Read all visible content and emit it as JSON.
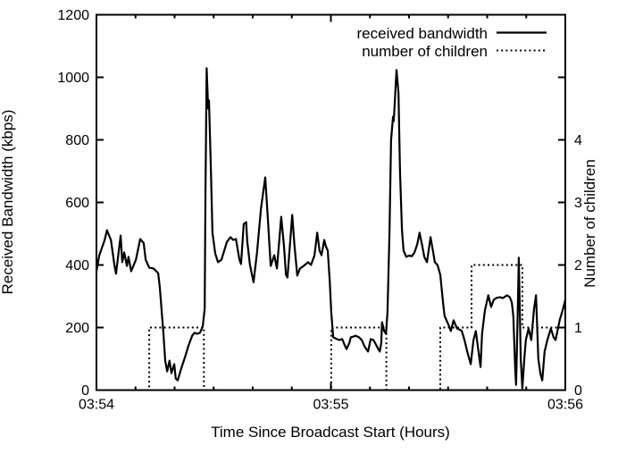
{
  "figure": {
    "background": "#ffffff",
    "line_color": "#000000"
  },
  "chart_data": {
    "type": "line",
    "title": "",
    "xlabel": "Time Since Broadcast Start (Hours)",
    "ylabel_left": "Received Bandwidth (kbps)",
    "ylabel_right": "Number of children",
    "grid": false,
    "legend_position": "top-right-inside",
    "x_axis": {
      "range_seconds": [
        0,
        120
      ],
      "major_tick_seconds": [
        0,
        60,
        120
      ],
      "major_tick_labels": [
        "03:54",
        "03:55",
        "03:56"
      ],
      "minor_tick_interval_seconds": 10
    },
    "y_axis_left": {
      "range": [
        0,
        1200
      ],
      "tick_values": [
        0,
        200,
        400,
        600,
        800,
        1000,
        1200
      ],
      "tick_labels": [
        "0",
        "200",
        "400",
        "600",
        "800",
        "1000",
        "1200"
      ]
    },
    "y_axis_right": {
      "range": [
        0,
        6
      ],
      "labeled_tick_values": [
        0,
        1,
        2,
        3,
        4
      ],
      "tick_labels": [
        "0",
        "1",
        "2",
        "3",
        "4"
      ],
      "unlabeled_tick_values": [
        5
      ]
    },
    "legend": [
      {
        "label": "received bandwidth",
        "style": "solid"
      },
      {
        "label": "number of children",
        "style": "dotted"
      }
    ],
    "series": [
      {
        "name": "received bandwidth",
        "axis": "left",
        "style": "solid",
        "units": "kbps",
        "points": [
          [
            0,
            380
          ],
          [
            0.7,
            430
          ],
          [
            1.4,
            455
          ],
          [
            2.1,
            480
          ],
          [
            2.7,
            511
          ],
          [
            3.7,
            480
          ],
          [
            4.6,
            400
          ],
          [
            5,
            372
          ],
          [
            6.2,
            494
          ],
          [
            6.6,
            409
          ],
          [
            7.1,
            440
          ],
          [
            7.8,
            397
          ],
          [
            8.2,
            426
          ],
          [
            8.9,
            380
          ],
          [
            10.1,
            417
          ],
          [
            11.2,
            483
          ],
          [
            12.1,
            470
          ],
          [
            12.6,
            417
          ],
          [
            13.5,
            391
          ],
          [
            14.6,
            389
          ],
          [
            15.8,
            374
          ],
          [
            16.2,
            330
          ],
          [
            17.1,
            189
          ],
          [
            17.6,
            94
          ],
          [
            18.1,
            60
          ],
          [
            18.7,
            94
          ],
          [
            19.2,
            54
          ],
          [
            19.9,
            83
          ],
          [
            20.3,
            37
          ],
          [
            20.8,
            31
          ],
          [
            21.7,
            69
          ],
          [
            22.6,
            103
          ],
          [
            23.5,
            140
          ],
          [
            24.5,
            174
          ],
          [
            25.1,
            183
          ],
          [
            25.8,
            180
          ],
          [
            26.5,
            183
          ],
          [
            27.2,
            203
          ],
          [
            27.7,
            260
          ],
          [
            27.9,
            640
          ],
          [
            28.2,
            1029
          ],
          [
            28.6,
            900
          ],
          [
            28.8,
            926
          ],
          [
            29.3,
            700
          ],
          [
            29.7,
            503
          ],
          [
            30.4,
            437
          ],
          [
            31.1,
            409
          ],
          [
            32,
            417
          ],
          [
            33.4,
            474
          ],
          [
            34.3,
            489
          ],
          [
            35,
            480
          ],
          [
            35.7,
            483
          ],
          [
            36.6,
            417
          ],
          [
            37,
            403
          ],
          [
            37.7,
            531
          ],
          [
            38.3,
            537
          ],
          [
            38.6,
            474
          ],
          [
            39.3,
            400
          ],
          [
            40.2,
            345
          ],
          [
            41.1,
            440
          ],
          [
            42.1,
            580
          ],
          [
            43.2,
            680
          ],
          [
            43.9,
            540
          ],
          [
            44.6,
            397
          ],
          [
            45.5,
            431
          ],
          [
            46.2,
            389
          ],
          [
            47.3,
            554
          ],
          [
            48,
            460
          ],
          [
            48.5,
            369
          ],
          [
            48.9,
            360
          ],
          [
            50.1,
            560
          ],
          [
            50.7,
            460
          ],
          [
            51.4,
            366
          ],
          [
            52.1,
            389
          ],
          [
            53,
            397
          ],
          [
            54.2,
            409
          ],
          [
            54.9,
            400
          ],
          [
            55.8,
            430
          ],
          [
            56.5,
            503
          ],
          [
            57.1,
            446
          ],
          [
            57.6,
            431
          ],
          [
            58.3,
            480
          ],
          [
            58.7,
            460
          ],
          [
            59.2,
            446
          ],
          [
            59.7,
            350
          ],
          [
            60.1,
            250
          ],
          [
            60.6,
            169
          ],
          [
            61.5,
            163
          ],
          [
            62.2,
            160
          ],
          [
            62.9,
            163
          ],
          [
            63.5,
            145
          ],
          [
            64,
            131
          ],
          [
            64.7,
            150
          ],
          [
            65.1,
            169
          ],
          [
            65.8,
            171
          ],
          [
            66.3,
            174
          ],
          [
            67.2,
            169
          ],
          [
            67.9,
            160
          ],
          [
            68.6,
            140
          ],
          [
            69.5,
            123
          ],
          [
            70.2,
            163
          ],
          [
            70.9,
            160
          ],
          [
            72,
            135
          ],
          [
            72.5,
            123
          ],
          [
            72.9,
            150
          ],
          [
            73.1,
            217
          ],
          [
            73.6,
            190
          ],
          [
            74.1,
            180
          ],
          [
            74.5,
            250
          ],
          [
            75,
            500
          ],
          [
            75.4,
            800
          ],
          [
            75.9,
            874
          ],
          [
            76.1,
            860
          ],
          [
            76.8,
            1023
          ],
          [
            77.3,
            950
          ],
          [
            77.7,
            700
          ],
          [
            78.2,
            511
          ],
          [
            78.6,
            446
          ],
          [
            79.3,
            426
          ],
          [
            80,
            430
          ],
          [
            80.7,
            428
          ],
          [
            81.4,
            440
          ],
          [
            82.1,
            466
          ],
          [
            82.7,
            503
          ],
          [
            83.4,
            460
          ],
          [
            83.9,
            426
          ],
          [
            84.6,
            409
          ],
          [
            85.5,
            489
          ],
          [
            86.2,
            440
          ],
          [
            86.6,
            409
          ],
          [
            87.3,
            400
          ],
          [
            88,
            369
          ],
          [
            88.7,
            280
          ],
          [
            89.1,
            237
          ],
          [
            90.1,
            209
          ],
          [
            90.7,
            189
          ],
          [
            91.4,
            223
          ],
          [
            92.3,
            197
          ],
          [
            93,
            193
          ],
          [
            93.5,
            189
          ],
          [
            94.2,
            160
          ],
          [
            94.9,
            123
          ],
          [
            95.8,
            83
          ],
          [
            96.5,
            160
          ],
          [
            97.1,
            189
          ],
          [
            97.6,
            140
          ],
          [
            98.3,
            74
          ],
          [
            98.7,
            180
          ],
          [
            99.4,
            254
          ],
          [
            100.3,
            303
          ],
          [
            101,
            266
          ],
          [
            101.7,
            289
          ],
          [
            102.4,
            295
          ],
          [
            103.3,
            297
          ],
          [
            104,
            294
          ],
          [
            105.1,
            303
          ],
          [
            105.8,
            297
          ],
          [
            106.3,
            280
          ],
          [
            106.7,
            237
          ],
          [
            107.2,
            60
          ],
          [
            107.4,
            17
          ],
          [
            107.9,
            300
          ],
          [
            108.1,
            423
          ],
          [
            108.6,
            100
          ],
          [
            109,
            6
          ],
          [
            109.5,
            100
          ],
          [
            109.9,
            160
          ],
          [
            110.6,
            197
          ],
          [
            111.3,
            160
          ],
          [
            112,
            260
          ],
          [
            112.5,
            303
          ],
          [
            113.1,
            100
          ],
          [
            113.6,
            54
          ],
          [
            114.1,
            31
          ],
          [
            114.7,
            123
          ],
          [
            115.4,
            160
          ],
          [
            116.3,
            197
          ],
          [
            117,
            169
          ],
          [
            117.5,
            160
          ],
          [
            118.6,
            226
          ],
          [
            119.3,
            254
          ],
          [
            120,
            289
          ]
        ]
      },
      {
        "name": "number of children",
        "axis": "right",
        "style": "dotted",
        "units": "children",
        "points": [
          [
            0,
            0
          ],
          [
            13.5,
            0
          ],
          [
            13.5,
            1
          ],
          [
            27.5,
            1
          ],
          [
            27.5,
            0
          ],
          [
            60.1,
            0
          ],
          [
            60.1,
            1
          ],
          [
            74.2,
            1
          ],
          [
            74.2,
            0
          ],
          [
            88,
            0
          ],
          [
            88,
            1
          ],
          [
            96,
            1
          ],
          [
            96,
            2
          ],
          [
            109,
            2
          ],
          [
            109,
            1
          ],
          [
            120,
            1
          ]
        ]
      }
    ]
  }
}
